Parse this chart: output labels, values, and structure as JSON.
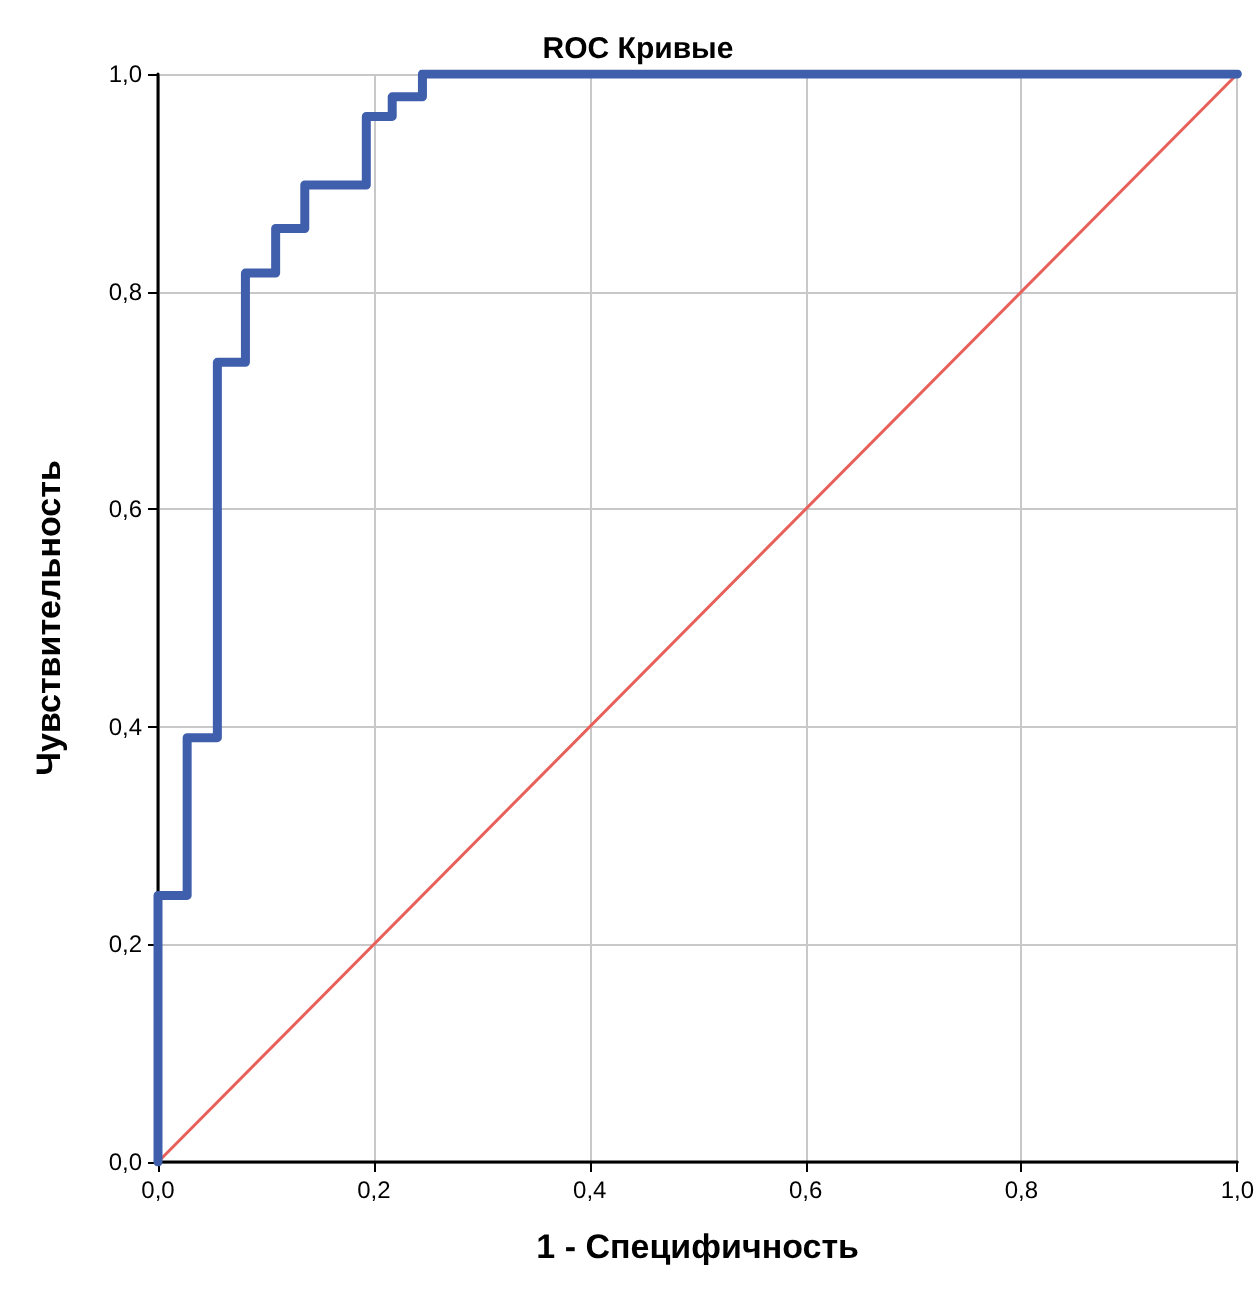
{
  "chart_data": {
    "type": "line",
    "title": "ROC Кривые",
    "xlabel": "1 - Специфичность",
    "ylabel": "Чувствительность",
    "series": [
      {
        "color": "#3f5fad",
        "x": [
          0,
          0,
          0.027,
          0.027,
          0.055,
          0.055,
          0.081,
          0.081,
          0.109,
          0.109,
          0.136,
          0.136,
          0.193,
          0.193,
          0.217,
          0.217,
          0.245,
          0.245,
          1
        ],
        "values": [
          0,
          0.245,
          0.245,
          0.39,
          0.39,
          0.735,
          0.735,
          0.817,
          0.817,
          0.858,
          0.858,
          0.898,
          0.898,
          0.961,
          0.961,
          0.979,
          0.979,
          1,
          1
        ]
      },
      {
        "color": "#e8605a",
        "x": [
          0,
          1
        ],
        "values": [
          0,
          1
        ]
      }
    ],
    "xlim": [
      0,
      1
    ],
    "ylim": [
      0,
      1
    ],
    "xticks": [
      {
        "value": 0,
        "label": "0,0"
      },
      {
        "value": 0.2,
        "label": "0,2"
      },
      {
        "value": 0.4,
        "label": "0,4"
      },
      {
        "value": 0.6,
        "label": "0,6"
      },
      {
        "value": 0.8,
        "label": "0,8"
      },
      {
        "value": 1,
        "label": "1,0"
      }
    ],
    "yticks": [
      {
        "value": 0,
        "label": "0,0"
      },
      {
        "value": 0.2,
        "label": "0,2"
      },
      {
        "value": 0.4,
        "label": "0,4"
      },
      {
        "value": 0.6,
        "label": "0,6"
      },
      {
        "value": 0.8,
        "label": "0,8"
      },
      {
        "value": 1,
        "label": "1,0"
      }
    ],
    "grid": true,
    "marker": "none",
    "line_style": "solid"
  }
}
